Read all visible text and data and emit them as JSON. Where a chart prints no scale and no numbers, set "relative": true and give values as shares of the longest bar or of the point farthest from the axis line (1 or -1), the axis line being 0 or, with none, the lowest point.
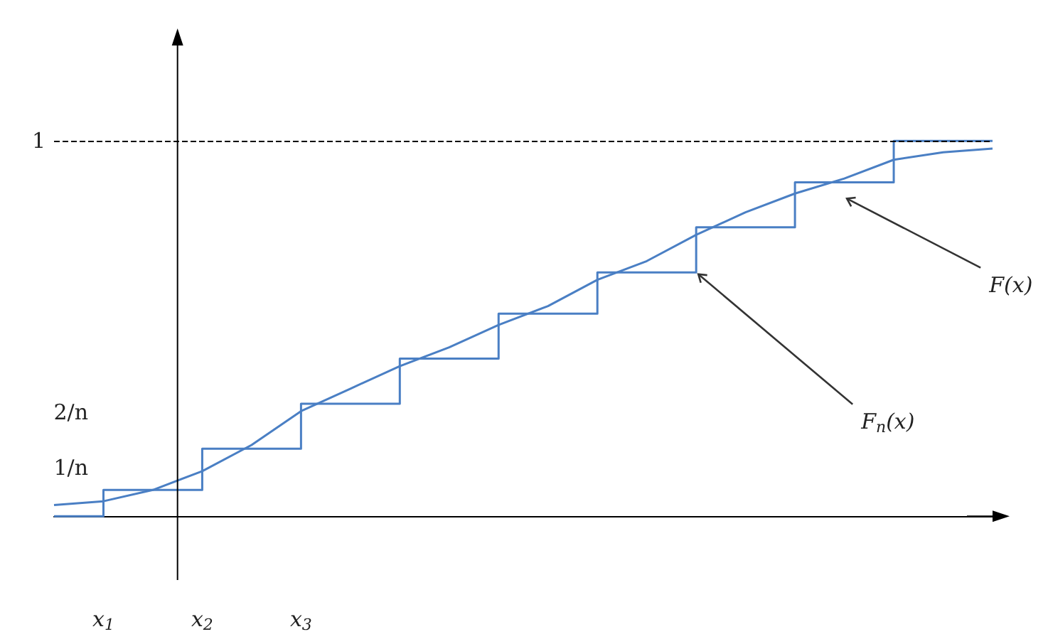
{
  "chart_data": {
    "type": "line",
    "relative": true,
    "categories": [
      null,
      "x$_{1}$",
      null,
      "x$_{2}$",
      null,
      "x$_{3}$",
      null,
      null,
      null,
      null,
      null,
      null,
      null,
      null,
      null,
      null,
      null,
      null,
      null,
      null
    ],
    "marker": "none",
    "series": [
      {
        "type": "step",
        "color": "#4a7fc4",
        "values": [
          0,
          0.07,
          0.07,
          0.18,
          0.18,
          0.3,
          0.3,
          0.42,
          0.42,
          0.54,
          0.54,
          0.65,
          0.65,
          0.77,
          0.77,
          0.89,
          0.89,
          1,
          1,
          1
        ]
      },
      {
        "color": "#4a7fc4",
        "values": [
          0.03,
          0.04,
          0.07,
          0.12,
          0.19,
          0.28,
          0.34,
          0.4,
          0.45,
          0.51,
          0.56,
          0.63,
          0.68,
          0.75,
          0.81,
          0.86,
          0.9,
          0.95,
          0.97,
          0.98
        ]
      }
    ],
    "ref_lines": [
      {
        "axis": "y",
        "value": 1,
        "label": "1",
        "color": "#000000",
        "line_style": "dashed"
      }
    ],
    "annotations": [
      "1/n",
      "2/n",
      "F$_{n}$(x)",
      "F(x)"
    ]
  }
}
